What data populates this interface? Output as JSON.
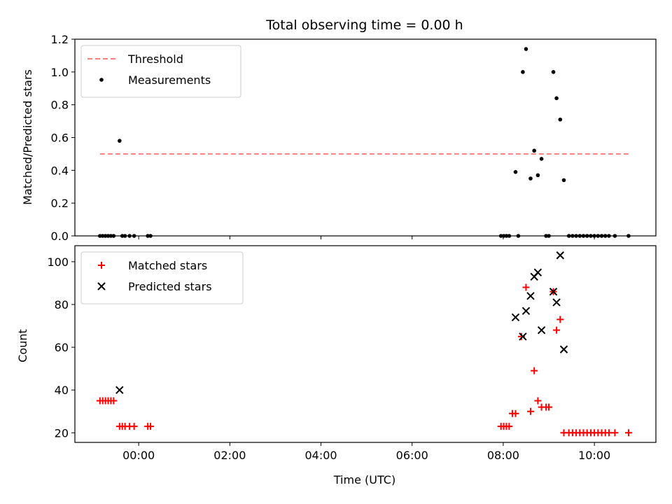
{
  "chart_data": [
    {
      "type": "scatter",
      "panel": "top",
      "title": "Total observing time = 0.00 h",
      "xlabel": "",
      "ylabel": "Matched/Predicted stars",
      "xlim": [
        -1.4,
        11.35
      ],
      "ylim": [
        0,
        1.2
      ],
      "yticks": [
        0,
        0.2,
        0.4,
        0.6,
        0.8,
        1.0,
        1.2
      ],
      "ytick_labels": [
        "0.0",
        "0.2",
        "0.4",
        "0.6",
        "0.8",
        "1.0",
        "1.2"
      ],
      "grid": false,
      "legend_position": "top-left",
      "threshold": {
        "name": "Threshold",
        "value": 0.5,
        "x_range": [
          -0.85,
          10.75
        ],
        "color": "#ff7f7f",
        "style": "dashed"
      },
      "series": [
        {
          "name": "Measurements",
          "color": "#000000",
          "marker": "dot",
          "points": [
            [
              -0.85,
              0
            ],
            [
              -0.79,
              0
            ],
            [
              -0.73,
              0
            ],
            [
              -0.67,
              0
            ],
            [
              -0.61,
              0
            ],
            [
              -0.55,
              0
            ],
            [
              -0.42,
              0.58
            ],
            [
              -0.36,
              0
            ],
            [
              -0.3,
              0
            ],
            [
              -0.2,
              0
            ],
            [
              -0.1,
              0
            ],
            [
              0.2,
              0
            ],
            [
              0.26,
              0
            ],
            [
              7.95,
              0
            ],
            [
              8.01,
              0
            ],
            [
              8.07,
              0
            ],
            [
              8.13,
              0
            ],
            [
              8.27,
              0.39
            ],
            [
              8.33,
              0
            ],
            [
              8.43,
              1.0
            ],
            [
              8.5,
              1.14
            ],
            [
              8.6,
              0.35
            ],
            [
              8.68,
              0.52
            ],
            [
              8.76,
              0.37
            ],
            [
              8.84,
              0.47
            ],
            [
              8.94,
              0
            ],
            [
              9.0,
              0
            ],
            [
              9.1,
              1.0
            ],
            [
              9.17,
              0.84
            ],
            [
              9.25,
              0.71
            ],
            [
              9.33,
              0.34
            ],
            [
              9.44,
              0
            ],
            [
              9.52,
              0
            ],
            [
              9.6,
              0
            ],
            [
              9.68,
              0
            ],
            [
              9.76,
              0
            ],
            [
              9.84,
              0
            ],
            [
              9.92,
              0
            ],
            [
              10.0,
              0
            ],
            [
              10.08,
              0
            ],
            [
              10.16,
              0
            ],
            [
              10.24,
              0
            ],
            [
              10.32,
              0
            ],
            [
              10.45,
              0
            ],
            [
              10.75,
              0
            ]
          ]
        }
      ]
    },
    {
      "type": "scatter",
      "panel": "bottom",
      "title": "",
      "xlabel": "Time (UTC)",
      "ylabel": "Count",
      "xlim": [
        -1.4,
        11.35
      ],
      "ylim": [
        15.5,
        107.5
      ],
      "xticks": [
        0,
        2,
        4,
        6,
        8,
        10
      ],
      "xtick_labels": [
        "00:00",
        "02:00",
        "04:00",
        "06:00",
        "08:00",
        "10:00"
      ],
      "yticks": [
        20,
        40,
        60,
        80,
        100
      ],
      "ytick_labels": [
        "20",
        "40",
        "60",
        "80",
        "100"
      ],
      "grid": false,
      "legend_position": "top-left",
      "series": [
        {
          "name": "Matched stars",
          "color": "#ff0000",
          "marker": "plus",
          "points": [
            [
              -0.85,
              35
            ],
            [
              -0.79,
              35
            ],
            [
              -0.73,
              35
            ],
            [
              -0.67,
              35
            ],
            [
              -0.61,
              35
            ],
            [
              -0.55,
              35
            ],
            [
              -0.42,
              23
            ],
            [
              -0.36,
              23
            ],
            [
              -0.3,
              23
            ],
            [
              -0.2,
              23
            ],
            [
              -0.1,
              23
            ],
            [
              0.2,
              23
            ],
            [
              0.26,
              23
            ],
            [
              7.95,
              23
            ],
            [
              8.01,
              23
            ],
            [
              8.07,
              23
            ],
            [
              8.13,
              23
            ],
            [
              8.2,
              29
            ],
            [
              8.27,
              29
            ],
            [
              8.4,
              65
            ],
            [
              8.5,
              88
            ],
            [
              8.6,
              30
            ],
            [
              8.68,
              49
            ],
            [
              8.76,
              35
            ],
            [
              8.84,
              32
            ],
            [
              8.94,
              32
            ],
            [
              9.0,
              32
            ],
            [
              9.1,
              86
            ],
            [
              9.17,
              68
            ],
            [
              9.25,
              73
            ],
            [
              9.33,
              20
            ],
            [
              9.44,
              20
            ],
            [
              9.52,
              20
            ],
            [
              9.6,
              20
            ],
            [
              9.68,
              20
            ],
            [
              9.76,
              20
            ],
            [
              9.84,
              20
            ],
            [
              9.92,
              20
            ],
            [
              10.0,
              20
            ],
            [
              10.08,
              20
            ],
            [
              10.16,
              20
            ],
            [
              10.24,
              20
            ],
            [
              10.32,
              20
            ],
            [
              10.45,
              20
            ],
            [
              10.75,
              20
            ]
          ]
        },
        {
          "name": "Predicted stars",
          "color": "#000000",
          "marker": "x",
          "points": [
            [
              -0.42,
              40
            ],
            [
              8.27,
              74
            ],
            [
              8.43,
              65
            ],
            [
              8.5,
              77
            ],
            [
              8.6,
              84
            ],
            [
              8.68,
              93
            ],
            [
              8.76,
              95
            ],
            [
              8.84,
              68
            ],
            [
              9.1,
              86
            ],
            [
              9.17,
              81
            ],
            [
              9.25,
              103
            ],
            [
              9.33,
              59
            ]
          ]
        }
      ]
    }
  ]
}
